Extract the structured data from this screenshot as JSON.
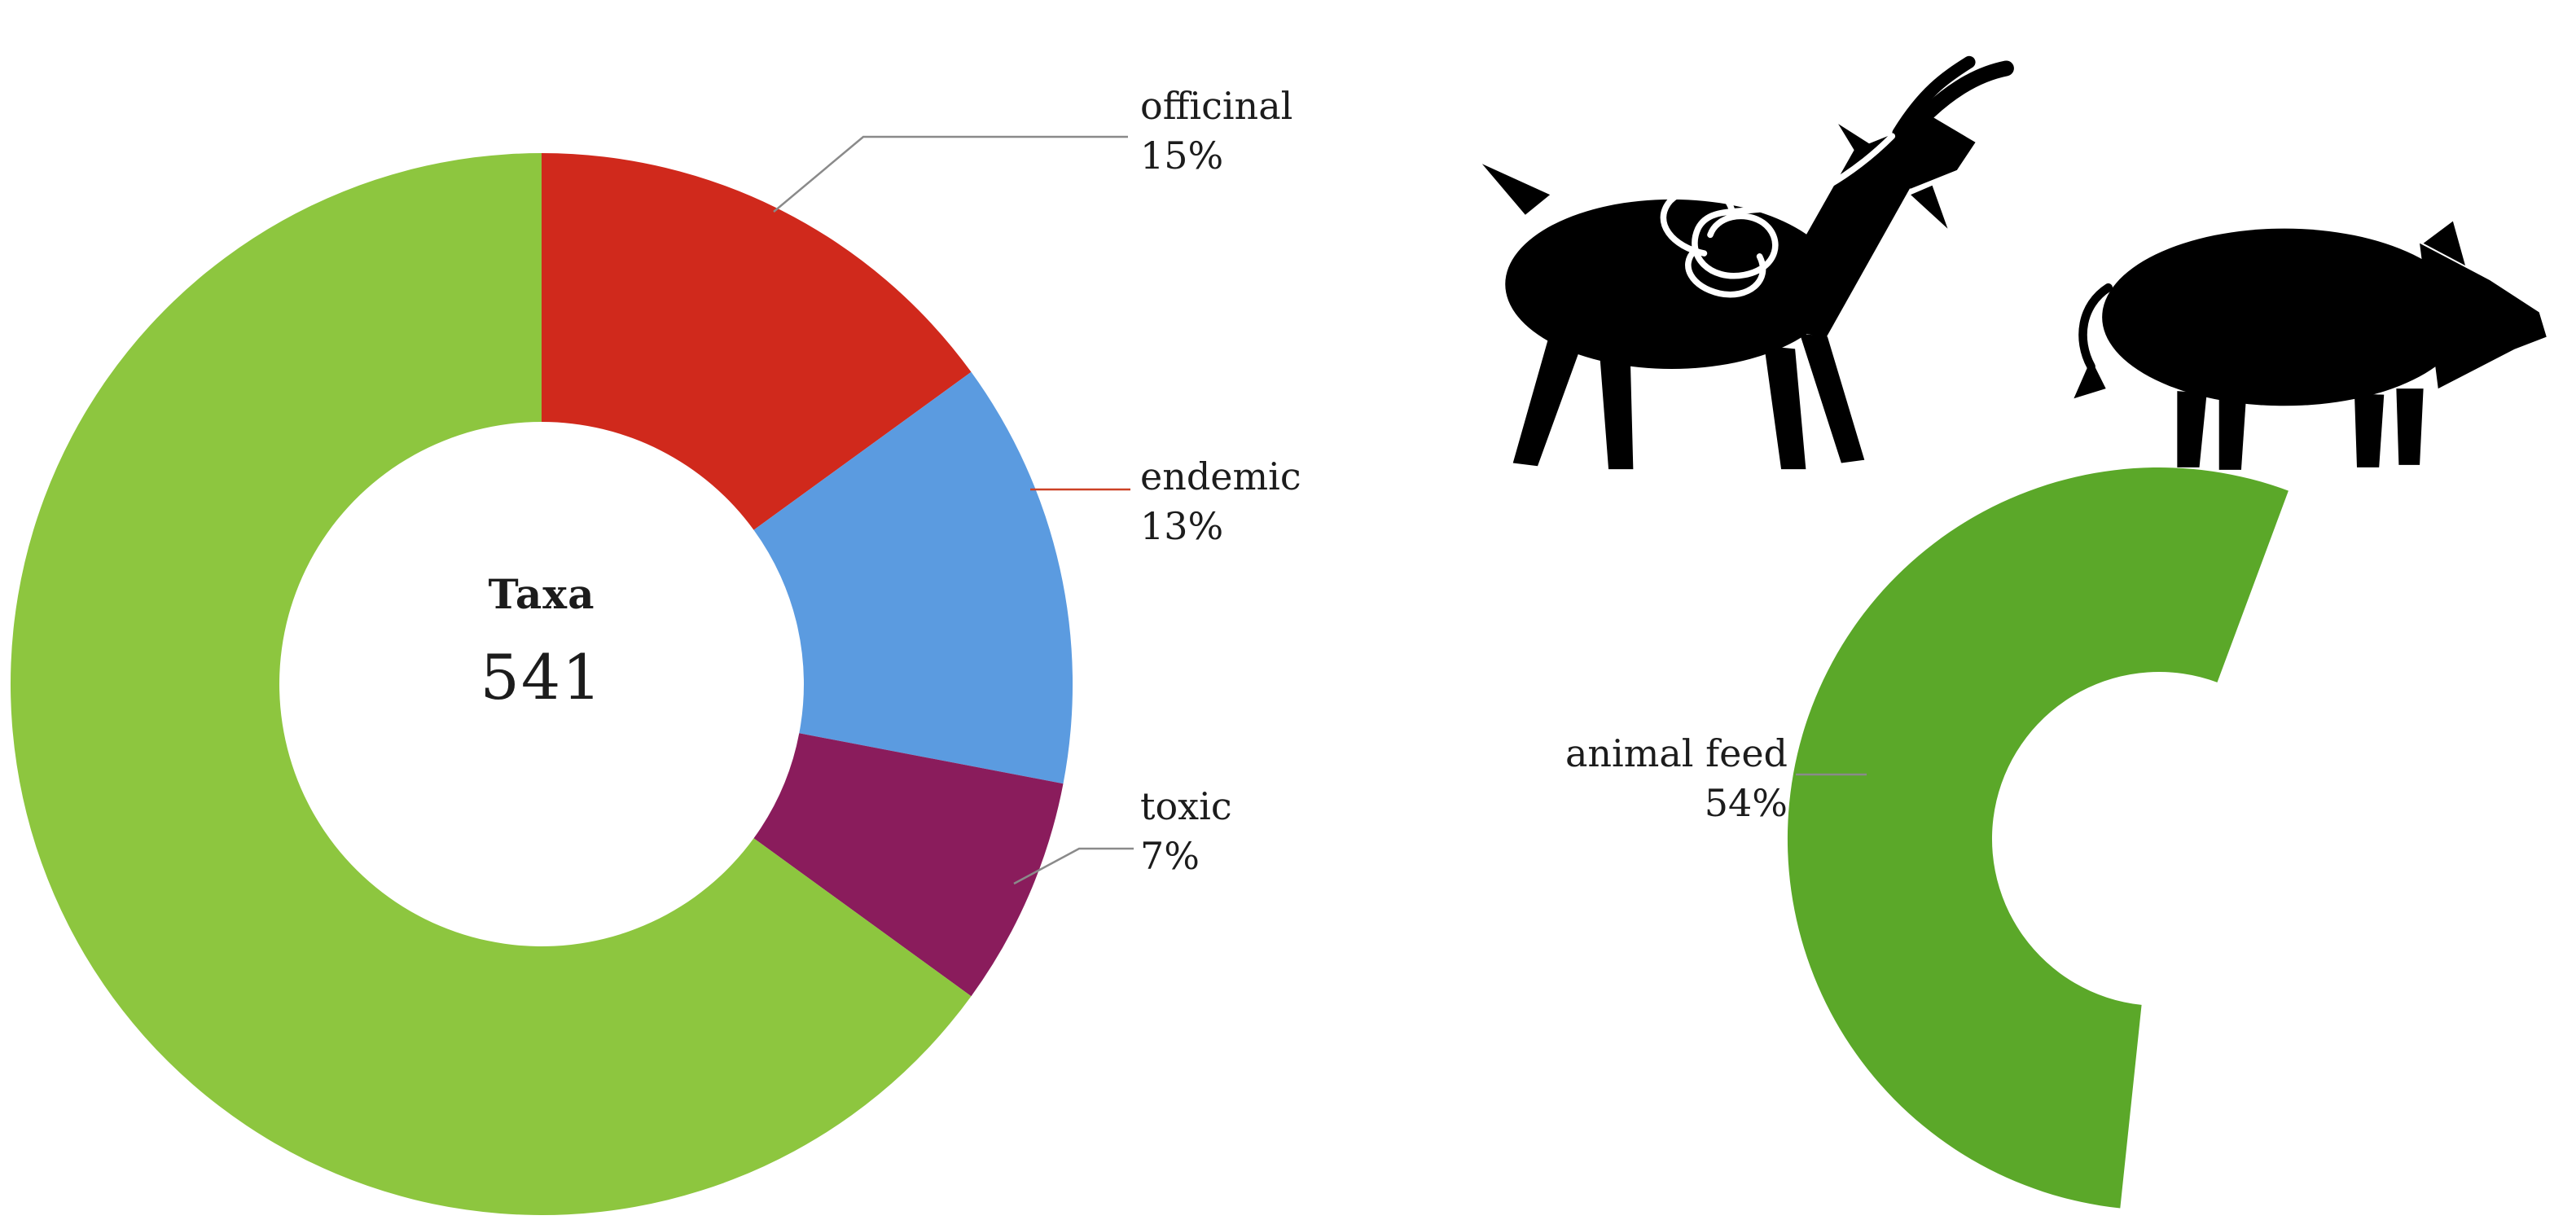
{
  "figure": {
    "background": "#ffffff",
    "left_donut": {
      "center_title": "Taxa",
      "center_value": "541"
    },
    "labels": {
      "officinal": {
        "name": "officinal",
        "pct": "15%"
      },
      "endemic": {
        "name": "endemic",
        "pct": "13%"
      },
      "toxic": {
        "name": "toxic",
        "pct": "7%"
      },
      "animal_feed": {
        "name": "animal feed",
        "pct": "54%"
      }
    },
    "icons": {
      "goat": "goat-silhouette-with-digestive-tract",
      "pig": "pig-silhouette"
    },
    "colors": {
      "green_left": "#8dc63f",
      "green_right": "#5ba829",
      "red": "#d0291c",
      "blue": "#5b9be0",
      "purple": "#8a1c5c",
      "leader_gray": "#8a8a8a",
      "leader_red": "#cc4125",
      "text": "#1c1c1c",
      "silhouette": "#000000"
    }
  },
  "chart_data": [
    {
      "type": "pie",
      "subtype": "donut",
      "title": "Taxa",
      "center_label": "Taxa",
      "center_value": 541,
      "units": "percent",
      "start_deg": 0,
      "direction": "clockwise",
      "legend_position": "right leader-line labels",
      "slices": [
        {
          "label": "officinal",
          "value": 15,
          "color": "#d0291c"
        },
        {
          "label": "endemic",
          "value": 13,
          "color": "#5b9be0"
        },
        {
          "label": "toxic",
          "value": 7,
          "color": "#8a1c5c"
        },
        {
          "label": "",
          "value": 65,
          "color": "#8dc63f"
        }
      ]
    },
    {
      "type": "pie",
      "subtype": "partial-donut",
      "units": "percent",
      "start_deg": 186,
      "direction": "clockwise",
      "legend_position": "left leader-line label",
      "slices": [
        {
          "label": "animal feed",
          "value": 54,
          "color": "#5ba829"
        }
      ]
    }
  ]
}
